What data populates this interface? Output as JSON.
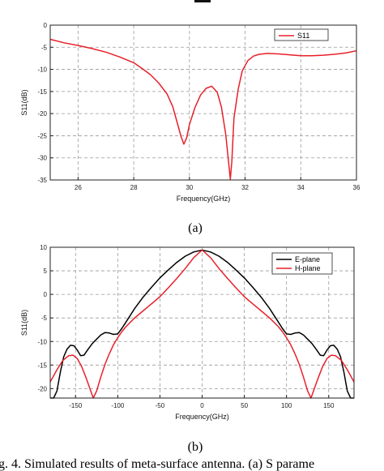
{
  "figure_caption": "g. 4. Simulated results of meta-surface antenna. (a) S parame",
  "chart_data": [
    {
      "type": "line",
      "panel_label": "(a)",
      "xlabel": "Frequency(GHz)",
      "ylabel": "S11(dB)",
      "xlim": [
        25,
        36
      ],
      "ylim": [
        -35,
        0
      ],
      "x_ticks": [
        26,
        28,
        30,
        32,
        34,
        36
      ],
      "y_ticks": [
        0,
        -5,
        -10,
        -15,
        -20,
        -25,
        -30,
        -35
      ],
      "grid": true,
      "legend": "top-right",
      "colors": {
        "S11": "#e8202a"
      },
      "series": [
        {
          "name": "S11",
          "x": [
            25,
            25.5,
            26,
            26.5,
            27,
            27.5,
            28,
            28.3,
            28.6,
            28.9,
            29.2,
            29.4,
            29.55,
            29.7,
            29.8,
            29.9,
            30.0,
            30.2,
            30.4,
            30.6,
            30.8,
            31.0,
            31.15,
            31.3,
            31.4,
            31.47,
            31.52,
            31.6,
            31.75,
            31.9,
            32.1,
            32.3,
            32.5,
            32.8,
            33.2,
            33.6,
            34.0,
            34.4,
            34.8,
            35.2,
            35.6,
            36
          ],
          "y": [
            -3.2,
            -4.0,
            -4.6,
            -5.3,
            -6.1,
            -7.2,
            -8.5,
            -9.8,
            -11.2,
            -13.1,
            -15.6,
            -18.4,
            -21.8,
            -25.2,
            -26.9,
            -25.5,
            -22.5,
            -18.6,
            -15.8,
            -14.3,
            -13.8,
            -15.2,
            -18.5,
            -24.5,
            -30.5,
            -34.8,
            -31.0,
            -21.0,
            -14.5,
            -10.3,
            -8.0,
            -7.0,
            -6.6,
            -6.4,
            -6.5,
            -6.7,
            -6.9,
            -6.9,
            -6.8,
            -6.6,
            -6.3,
            -5.8
          ]
        }
      ]
    },
    {
      "type": "line",
      "panel_label": "(b)",
      "xlabel": "Frequency(GHz)",
      "ylabel": "S11(dB)",
      "xlim": [
        -180,
        180
      ],
      "ylim": [
        -22,
        10
      ],
      "x_ticks": [
        -150,
        -100,
        -50,
        0,
        50,
        100,
        150
      ],
      "y_ticks": [
        10,
        5,
        0,
        -5,
        -10,
        -15,
        -20
      ],
      "grid": true,
      "legend": "top-right",
      "colors": {
        "E-plane": "#000000",
        "H-plane": "#e8202a"
      },
      "series": [
        {
          "name": "E-plane",
          "x": [
            -180,
            -176,
            -172,
            -168,
            -164,
            -160,
            -156,
            -152,
            -148,
            -144,
            -140,
            -135,
            -130,
            -125,
            -120,
            -115,
            -110,
            -105,
            -100,
            -95,
            -90,
            -85,
            -80,
            -70,
            -60,
            -50,
            -40,
            -30,
            -20,
            -10,
            0,
            10,
            20,
            30,
            40,
            50,
            60,
            70,
            80,
            85,
            90,
            95,
            100,
            105,
            110,
            115,
            120,
            125,
            130,
            135,
            140,
            144,
            148,
            152,
            156,
            160,
            164,
            168,
            172,
            176,
            180
          ],
          "y": [
            -22,
            -22,
            -20.5,
            -16.5,
            -13.2,
            -11.6,
            -10.8,
            -10.9,
            -11.8,
            -13.0,
            -12.9,
            -11.6,
            -10.4,
            -9.5,
            -8.6,
            -8.1,
            -8.2,
            -8.5,
            -8.4,
            -7.2,
            -5.8,
            -4.4,
            -3.0,
            -0.6,
            1.5,
            3.5,
            5.2,
            6.8,
            8.1,
            9.0,
            9.4,
            9.0,
            8.1,
            6.8,
            5.2,
            3.5,
            1.5,
            -0.6,
            -3.0,
            -4.4,
            -5.8,
            -7.2,
            -8.4,
            -8.5,
            -8.2,
            -8.1,
            -8.6,
            -9.5,
            -10.4,
            -11.6,
            -12.9,
            -13.0,
            -11.8,
            -10.9,
            -10.8,
            -11.6,
            -13.2,
            -16.5,
            -20.5,
            -22,
            -22
          ]
        },
        {
          "name": "H-plane",
          "x": [
            -180,
            -172,
            -165,
            -158,
            -153,
            -148,
            -143,
            -138,
            -133,
            -129,
            -125,
            -120,
            -115,
            -110,
            -105,
            -100,
            -95,
            -90,
            -80,
            -70,
            -60,
            -50,
            -40,
            -30,
            -20,
            -10,
            0,
            10,
            20,
            30,
            40,
            50,
            60,
            70,
            80,
            90,
            95,
            100,
            105,
            110,
            115,
            120,
            125,
            129,
            133,
            138,
            143,
            148,
            153,
            158,
            165,
            172,
            180
          ],
          "y": [
            -18.6,
            -16.0,
            -14.0,
            -13.0,
            -12.9,
            -13.6,
            -15.2,
            -17.5,
            -20.0,
            -22,
            -20.5,
            -17.5,
            -14.8,
            -12.6,
            -10.7,
            -9.2,
            -7.9,
            -6.8,
            -5.0,
            -3.5,
            -2.0,
            -0.5,
            1.4,
            3.4,
            5.5,
            7.8,
            9.4,
            7.8,
            5.5,
            3.4,
            1.4,
            -0.5,
            -2.0,
            -3.5,
            -5.0,
            -6.8,
            -7.9,
            -9.2,
            -10.7,
            -12.6,
            -14.8,
            -17.5,
            -20.5,
            -22,
            -20.0,
            -17.5,
            -15.2,
            -13.6,
            -12.9,
            -13.0,
            -14.0,
            -16.0,
            -18.6
          ]
        }
      ]
    }
  ]
}
